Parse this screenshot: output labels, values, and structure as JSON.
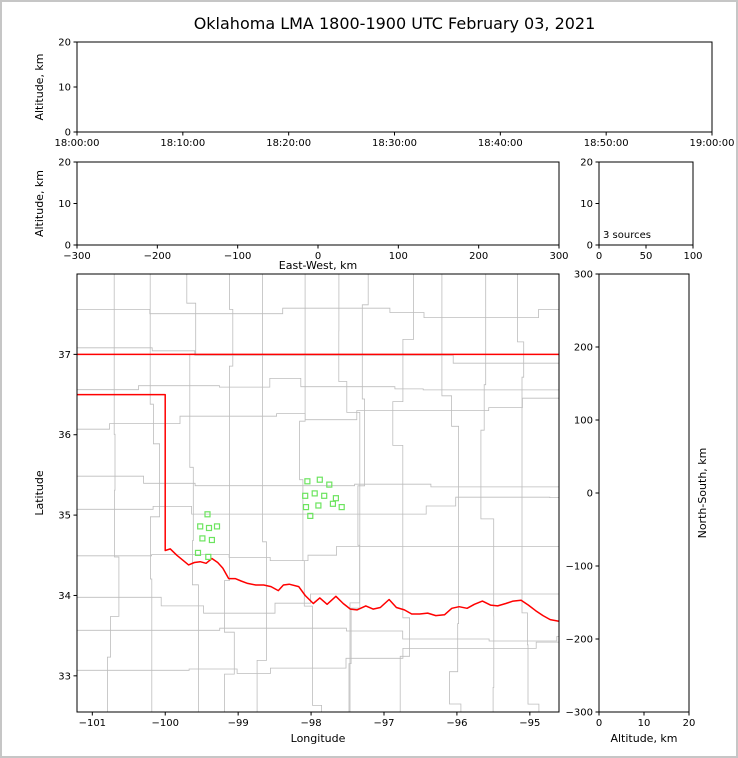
{
  "title": "Oklahoma LMA 1800-1900 UTC February 03, 2021",
  "colors": {
    "background": "#ffffff",
    "axis": "#000000",
    "county_lines": "#bdbdbd",
    "state_border": "#ff0000",
    "source_marker": "#6ce45f"
  },
  "chart_data": [
    {
      "id": "time_height",
      "type": "scatter",
      "xlabel": "",
      "ylabel": "Altitude, km",
      "xlim": [
        0,
        3600
      ],
      "ylim": [
        0,
        20
      ],
      "xticks": [
        0,
        600,
        1200,
        1800,
        2400,
        3000,
        3600
      ],
      "xtick_labels": [
        "18:00:00",
        "18:10:00",
        "18:20:00",
        "18:30:00",
        "18:40:00",
        "18:50:00",
        "19:00:00"
      ],
      "yticks": [
        0,
        10,
        20
      ],
      "points": []
    },
    {
      "id": "ew_height",
      "type": "scatter",
      "xlabel": "East-West, km",
      "ylabel": "Altitude, km",
      "xlim": [
        -300,
        300
      ],
      "ylim": [
        0,
        20
      ],
      "xticks": [
        -300,
        -200,
        -100,
        0,
        100,
        200,
        300
      ],
      "yticks": [
        0,
        10,
        20
      ],
      "points": []
    },
    {
      "id": "histogram",
      "type": "line",
      "annotation": "3 sources",
      "xlabel": "",
      "ylabel": "",
      "xlim": [
        0,
        100
      ],
      "ylim": [
        0,
        20
      ],
      "xticks": [
        0,
        50,
        100
      ],
      "yticks": [
        0,
        10,
        20
      ],
      "points": []
    },
    {
      "id": "map",
      "type": "scatter",
      "xlabel": "Longitude",
      "ylabel": "Latitude",
      "xlim": [
        -101.21,
        -94.6
      ],
      "ylim": [
        32.55,
        38.0
      ],
      "xticks": [
        -101,
        -100,
        -99,
        -98,
        -97,
        -96,
        -95
      ],
      "yticks": [
        33,
        34,
        35,
        36,
        37
      ],
      "points": [
        [
          -98.05,
          35.42
        ],
        [
          -97.88,
          35.44
        ],
        [
          -97.75,
          35.38
        ],
        [
          -98.08,
          35.24
        ],
        [
          -97.95,
          35.27
        ],
        [
          -97.82,
          35.24
        ],
        [
          -97.66,
          35.21
        ],
        [
          -98.07,
          35.1
        ],
        [
          -97.9,
          35.12
        ],
        [
          -98.01,
          34.99
        ],
        [
          -97.7,
          35.14
        ],
        [
          -97.58,
          35.1
        ],
        [
          -99.42,
          35.01
        ],
        [
          -99.52,
          34.86
        ],
        [
          -99.4,
          34.84
        ],
        [
          -99.29,
          34.86
        ],
        [
          -99.49,
          34.71
        ],
        [
          -99.36,
          34.69
        ],
        [
          -99.55,
          34.53
        ],
        [
          -99.41,
          34.48
        ]
      ],
      "state_border": [
        [
          [
            -101.21,
            37.0
          ],
          [
            -94.6,
            37.0
          ]
        ],
        [
          [
            -101.21,
            36.5
          ],
          [
            -100.0,
            36.5
          ],
          [
            -100.0,
            34.56
          ],
          [
            -99.93,
            34.58
          ],
          [
            -99.84,
            34.5
          ],
          [
            -99.76,
            34.44
          ],
          [
            -99.68,
            34.38
          ],
          [
            -99.6,
            34.41
          ],
          [
            -99.52,
            34.42
          ],
          [
            -99.44,
            34.4
          ],
          [
            -99.36,
            34.46
          ],
          [
            -99.28,
            34.41
          ],
          [
            -99.21,
            34.34
          ],
          [
            -99.13,
            34.21
          ],
          [
            -99.04,
            34.21
          ],
          [
            -98.96,
            34.18
          ],
          [
            -98.87,
            34.15
          ],
          [
            -98.76,
            34.13
          ],
          [
            -98.65,
            34.13
          ],
          [
            -98.55,
            34.11
          ],
          [
            -98.45,
            34.06
          ],
          [
            -98.38,
            34.13
          ],
          [
            -98.3,
            34.14
          ],
          [
            -98.17,
            34.11
          ],
          [
            -98.08,
            34.0
          ],
          [
            -97.97,
            33.9
          ],
          [
            -97.88,
            33.97
          ],
          [
            -97.78,
            33.89
          ],
          [
            -97.66,
            33.99
          ],
          [
            -97.56,
            33.9
          ],
          [
            -97.46,
            33.83
          ],
          [
            -97.37,
            33.82
          ],
          [
            -97.25,
            33.87
          ],
          [
            -97.15,
            33.83
          ],
          [
            -97.05,
            33.85
          ],
          [
            -96.93,
            33.95
          ],
          [
            -96.83,
            33.85
          ],
          [
            -96.72,
            33.82
          ],
          [
            -96.62,
            33.77
          ],
          [
            -96.51,
            33.77
          ],
          [
            -96.4,
            33.78
          ],
          [
            -96.29,
            33.75
          ],
          [
            -96.17,
            33.76
          ],
          [
            -96.07,
            33.84
          ],
          [
            -95.97,
            33.86
          ],
          [
            -95.86,
            33.84
          ],
          [
            -95.76,
            33.89
          ],
          [
            -95.65,
            33.93
          ],
          [
            -95.54,
            33.88
          ],
          [
            -95.44,
            33.87
          ],
          [
            -95.33,
            33.9
          ],
          [
            -95.23,
            33.93
          ],
          [
            -95.12,
            33.94
          ],
          [
            -95.02,
            33.88
          ],
          [
            -94.92,
            33.81
          ],
          [
            -94.82,
            33.75
          ],
          [
            -94.72,
            33.7
          ],
          [
            -94.6,
            33.68
          ]
        ]
      ]
    },
    {
      "id": "ns_height",
      "type": "scatter",
      "xlabel": "Altitude, km",
      "ylabel": "North-South, km",
      "ylabel_side": "right",
      "xlim": [
        0,
        20
      ],
      "ylim": [
        -300,
        300
      ],
      "xticks": [
        0,
        10,
        20
      ],
      "yticks": [
        -300,
        -200,
        -100,
        0,
        100,
        200,
        300
      ],
      "points": []
    }
  ]
}
